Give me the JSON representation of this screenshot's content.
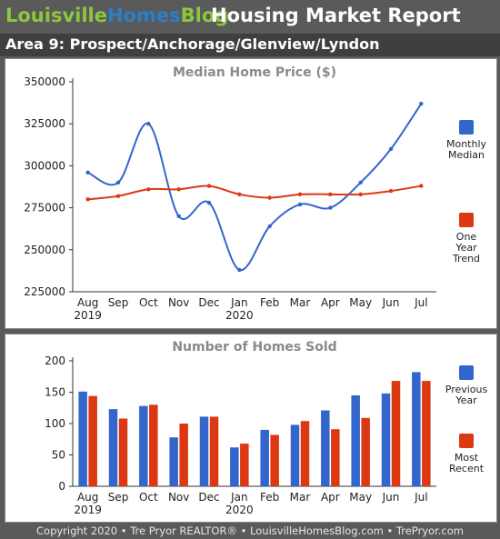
{
  "header": {
    "brand_part1": "Louisville",
    "brand_part2": "Homes",
    "brand_part3": "Blog",
    "report_title": "Housing Market Report"
  },
  "area_title": "Area 9: Prospect/Anchorage/Glenview/Lyndon",
  "footer": "Copyright 2020 • Tre Pryor REALTOR® • LouisvilleHomesBlog.com • TrePryor.com",
  "colors": {
    "series_blue": "#3366cc",
    "series_red": "#dc3912",
    "brand_green": "#8dc63f",
    "brand_blue": "#2a7fc9"
  },
  "chart_data": [
    {
      "type": "line",
      "title": "Median Home Price ($)",
      "categories": [
        "Aug",
        "Sep",
        "Oct",
        "Nov",
        "Dec",
        "Jan",
        "Feb",
        "Mar",
        "Apr",
        "May",
        "Jun",
        "Jul"
      ],
      "year_labels": [
        {
          "index": 0,
          "label": "2019"
        },
        {
          "index": 5,
          "label": "2020"
        }
      ],
      "ylim": [
        225000,
        350000
      ],
      "yticks": [
        225000,
        250000,
        275000,
        300000,
        325000,
        350000
      ],
      "smooth": true,
      "series": [
        {
          "legend": [
            "Monthly",
            "Median"
          ],
          "color": "#3366cc",
          "values": [
            296000,
            290000,
            325000,
            270000,
            278000,
            238000,
            264000,
            277000,
            275000,
            290000,
            310000,
            337000
          ]
        },
        {
          "legend": [
            "One",
            "Year",
            "Trend"
          ],
          "color": "#dc3912",
          "values": [
            280000,
            282000,
            286000,
            286000,
            288000,
            283000,
            281000,
            283000,
            283000,
            283000,
            285000,
            288000
          ]
        }
      ],
      "legend_position": "right"
    },
    {
      "type": "bar",
      "title": "Number of Homes Sold",
      "categories": [
        "Aug",
        "Sep",
        "Oct",
        "Nov",
        "Dec",
        "Jan",
        "Feb",
        "Mar",
        "Apr",
        "May",
        "Jun",
        "Jul"
      ],
      "year_labels": [
        {
          "index": 0,
          "label": "2019"
        },
        {
          "index": 5,
          "label": "2020"
        }
      ],
      "ylim": [
        0,
        200
      ],
      "yticks": [
        0,
        50,
        100,
        150,
        200
      ],
      "series": [
        {
          "legend": [
            "Previous",
            "Year"
          ],
          "color": "#3366cc",
          "values": [
            151,
            123,
            128,
            78,
            111,
            62,
            90,
            98,
            121,
            145,
            148,
            182
          ]
        },
        {
          "legend": [
            "Most",
            "Recent"
          ],
          "color": "#dc3912",
          "values": [
            144,
            108,
            130,
            100,
            111,
            68,
            82,
            104,
            91,
            109,
            168,
            168
          ]
        }
      ],
      "legend_position": "right"
    }
  ]
}
